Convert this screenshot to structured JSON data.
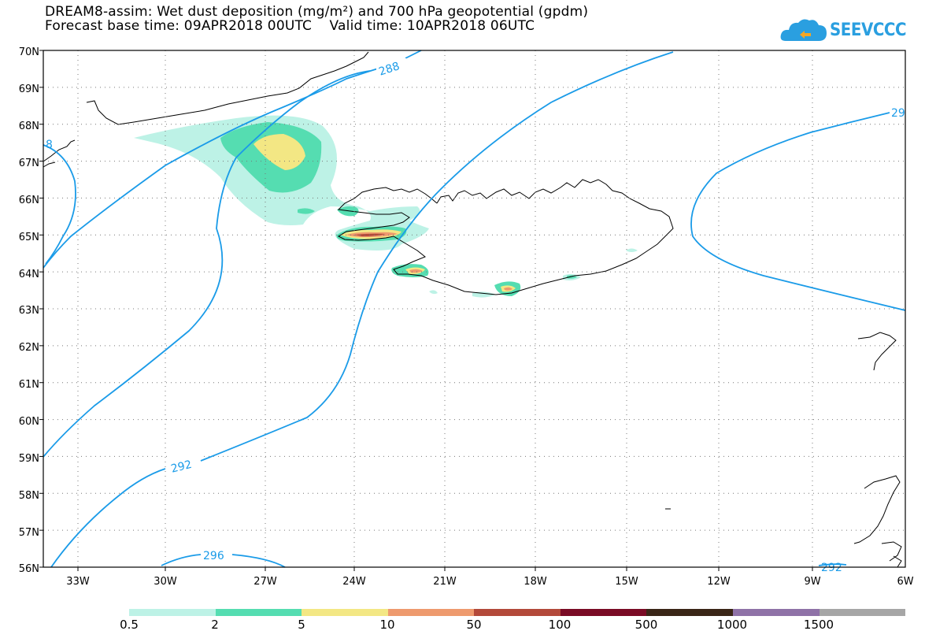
{
  "header": {
    "line1": "DREAM8-assim: Wet dust deposition (mg/m²) and 700 hPa geopotential (gpdm)",
    "line2": "Forecast base time: 09APR2018 00UTC    Valid time: 10APR2018 06UTC"
  },
  "logo": {
    "text": "SEEVCCC",
    "icon": "cloud-icon"
  },
  "axes": {
    "lat_labels": [
      "70N",
      "69N",
      "68N",
      "67N",
      "66N",
      "65N",
      "64N",
      "63N",
      "62N",
      "61N",
      "60N",
      "59N",
      "58N",
      "57N",
      "56N"
    ],
    "lon_labels": [
      "33W",
      "30W",
      "27W",
      "24W",
      "21W",
      "18W",
      "15W",
      "12W",
      "9W",
      "6W"
    ]
  },
  "contour_labels": [
    "288",
    "292",
    "296",
    "292",
    "29",
    "8"
  ],
  "colors": {
    "contour": "#1a9be8",
    "dust_levels": [
      "#bdf2e6",
      "#55ddb1",
      "#f3e784",
      "#ee9a6e",
      "#b3493a",
      "#7a0b25",
      "#3a2617",
      "#8f72a7",
      "#a6a6a6"
    ]
  },
  "legend": {
    "labels": [
      "0.5",
      "2",
      "5",
      "10",
      "50",
      "100",
      "500",
      "1000",
      "1500"
    ]
  }
}
